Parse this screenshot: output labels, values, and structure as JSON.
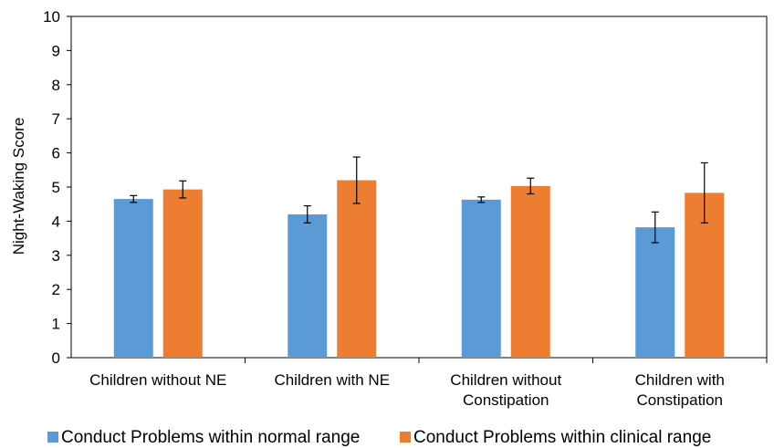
{
  "chart_data": {
    "type": "bar",
    "title": "",
    "xlabel": "",
    "ylabel": "Night-Waking Score",
    "ylim": [
      0,
      10
    ],
    "yticks": [
      0,
      1,
      2,
      3,
      4,
      5,
      6,
      7,
      8,
      9,
      10
    ],
    "grid": false,
    "legend_position": "bottom",
    "categories": [
      [
        "Children without NE"
      ],
      [
        "Children with NE"
      ],
      [
        "Children without",
        "Constipation"
      ],
      [
        "Children with",
        "Constipation"
      ]
    ],
    "series": [
      {
        "name": "Conduct Problems within normal range",
        "color": "#5B9BD5",
        "values": [
          4.65,
          4.2,
          4.63,
          3.82
        ],
        "error": [
          0.1,
          0.25,
          0.08,
          0.45
        ]
      },
      {
        "name": "Conduct Problems within clinical range",
        "color": "#ED7D31",
        "values": [
          4.93,
          5.2,
          5.03,
          4.83
        ],
        "error": [
          0.25,
          0.68,
          0.23,
          0.88
        ]
      }
    ]
  }
}
